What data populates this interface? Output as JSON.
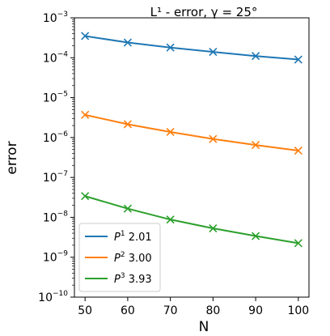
{
  "chart_data": {
    "type": "line",
    "title": "L¹ - error, γ = 25°",
    "xlabel": "N",
    "ylabel": "error",
    "yscale": "log",
    "x": [
      50,
      60,
      70,
      80,
      90,
      100
    ],
    "xlim": [
      47.5,
      102.5
    ],
    "ylim": [
      1e-10,
      0.001
    ],
    "x_ticks": [
      "50",
      "60",
      "70",
      "80",
      "90",
      "100"
    ],
    "y_ticks": [
      {
        "value": 1e-10,
        "base": "10",
        "exp": "−10"
      },
      {
        "value": 1e-09,
        "base": "10",
        "exp": "−9"
      },
      {
        "value": 1e-08,
        "base": "10",
        "exp": "−8"
      },
      {
        "value": 1e-07,
        "base": "10",
        "exp": "−7"
      },
      {
        "value": 1e-06,
        "base": "10",
        "exp": "−6"
      },
      {
        "value": 1e-05,
        "base": "10",
        "exp": "−5"
      },
      {
        "value": 0.0001,
        "base": "10",
        "exp": "−4"
      },
      {
        "value": 0.001,
        "base": "10",
        "exp": "−3"
      }
    ],
    "grid": false,
    "legend_position": "lower-left",
    "series": [
      {
        "name": "P¹ 2.01",
        "label_base": "P",
        "label_sup": "1",
        "label_rate": "2.01",
        "color": "#1f77b4",
        "values": [
          0.00035,
          0.00024,
          0.00018,
          0.00014,
          0.00011,
          9e-05
        ]
      },
      {
        "name": "P² 3.00",
        "label_base": "P",
        "label_sup": "2",
        "label_rate": "3.00",
        "color": "#ff7f0e",
        "values": [
          3.7e-06,
          2.15e-06,
          1.38e-06,
          9.2e-07,
          6.5e-07,
          4.7e-07
        ]
      },
      {
        "name": "P³ 3.93",
        "label_base": "P",
        "label_sup": "3",
        "label_rate": "3.93",
        "color": "#2ca02c",
        "values": [
          3.4e-08,
          1.65e-08,
          8.8e-09,
          5.3e-09,
          3.4e-09,
          2.25e-09
        ]
      }
    ]
  }
}
